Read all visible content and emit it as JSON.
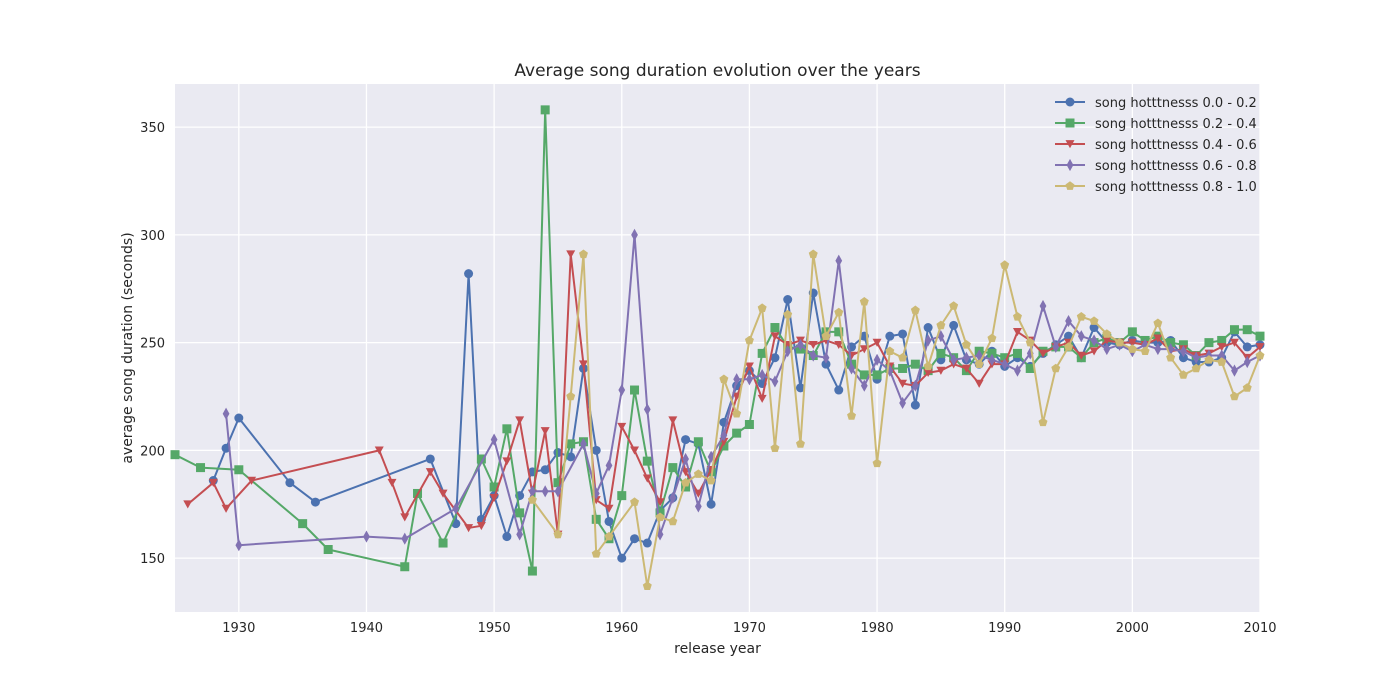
{
  "chart_data": {
    "type": "line",
    "title": "Average song duration evolution over the years",
    "xlabel": "release year",
    "ylabel": "average song duration (seconds)",
    "xlim": [
      1925,
      2010
    ],
    "ylim": [
      125,
      370
    ],
    "xticks": [
      1930,
      1940,
      1950,
      1960,
      1970,
      1980,
      1990,
      2000,
      2010
    ],
    "yticks": [
      150,
      200,
      250,
      300,
      350
    ],
    "grid": true,
    "legend_position": "top-right",
    "series": [
      {
        "name": "song hotttnesss 0.0 - 0.2",
        "color": "#4c72b0",
        "marker": "circle",
        "x": [
          1928,
          1929,
          1930,
          1934,
          1936,
          1945,
          1947,
          1948,
          1949,
          1950,
          1951,
          1952,
          1953,
          1954,
          1955,
          1956,
          1957,
          1958,
          1959,
          1960,
          1961,
          1962,
          1963,
          1964,
          1965,
          1966,
          1967,
          1968,
          1969,
          1970,
          1971,
          1972,
          1973,
          1974,
          1975,
          1976,
          1977,
          1978,
          1979,
          1980,
          1981,
          1982,
          1983,
          1984,
          1985,
          1986,
          1987,
          1988,
          1989,
          1990,
          1991,
          1992,
          1993,
          1994,
          1995,
          1996,
          1997,
          1998,
          1999,
          2000,
          2001,
          2002,
          2003,
          2004,
          2005,
          2006,
          2007,
          2008,
          2009,
          2010
        ],
        "y": [
          186,
          201,
          215,
          185,
          176,
          196,
          166,
          282,
          168,
          179,
          160,
          179,
          190,
          191,
          199,
          197,
          238,
          200,
          167,
          150,
          159,
          157,
          172,
          178,
          205,
          203,
          175,
          213,
          230,
          237,
          231,
          243,
          270,
          229,
          273,
          240,
          228,
          248,
          253,
          233,
          253,
          254,
          221,
          257,
          242,
          258,
          242,
          240,
          246,
          239,
          243,
          239,
          245,
          249,
          253,
          243,
          257,
          250,
          249,
          251,
          250,
          250,
          251,
          243,
          241,
          241,
          243,
          255,
          248,
          249
        ]
      },
      {
        "name": "song hotttnesss 0.2 - 0.4",
        "color": "#55a868",
        "marker": "square",
        "x": [
          1925,
          1927,
          1930,
          1935,
          1937,
          1943,
          1944,
          1946,
          1949,
          1950,
          1951,
          1952,
          1953,
          1954,
          1955,
          1956,
          1957,
          1958,
          1959,
          1960,
          1961,
          1962,
          1963,
          1964,
          1965,
          1966,
          1967,
          1968,
          1969,
          1970,
          1971,
          1972,
          1973,
          1974,
          1975,
          1976,
          1977,
          1978,
          1979,
          1980,
          1981,
          1982,
          1983,
          1984,
          1985,
          1986,
          1987,
          1988,
          1989,
          1990,
          1991,
          1992,
          1993,
          1994,
          1995,
          1996,
          1997,
          1998,
          1999,
          2000,
          2001,
          2002,
          2003,
          2004,
          2005,
          2006,
          2007,
          2008,
          2009,
          2010
        ],
        "y": [
          198,
          192,
          191,
          166,
          154,
          146,
          180,
          157,
          196,
          183,
          210,
          171,
          144,
          358,
          185,
          203,
          204,
          168,
          159,
          179,
          228,
          195,
          171,
          192,
          183,
          204,
          190,
          202,
          208,
          212,
          245,
          257,
          248,
          247,
          244,
          255,
          255,
          240,
          235,
          235,
          238,
          238,
          240,
          237,
          245,
          243,
          237,
          246,
          245,
          243,
          245,
          238,
          246,
          248,
          248,
          243,
          250,
          252,
          250,
          255,
          251,
          253,
          250,
          249,
          244,
          250,
          251,
          256,
          256,
          253
        ]
      },
      {
        "name": "song hotttnesss 0.4 - 0.6",
        "color": "#c44e52",
        "marker": "triangle-down",
        "x": [
          1926,
          1928,
          1929,
          1931,
          1941,
          1942,
          1943,
          1945,
          1946,
          1948,
          1949,
          1950,
          1951,
          1952,
          1953,
          1954,
          1955,
          1956,
          1957,
          1958,
          1959,
          1960,
          1961,
          1962,
          1963,
          1964,
          1965,
          1966,
          1967,
          1968,
          1969,
          1970,
          1971,
          1972,
          1973,
          1974,
          1975,
          1976,
          1977,
          1978,
          1979,
          1980,
          1981,
          1982,
          1983,
          1984,
          1985,
          1986,
          1987,
          1988,
          1989,
          1990,
          1991,
          1992,
          1993,
          1994,
          1995,
          1996,
          1997,
          1998,
          1999,
          2000,
          2001,
          2002,
          2003,
          2004,
          2005,
          2006,
          2007,
          2008,
          2009,
          2010
        ],
        "y": [
          175,
          185,
          173,
          186,
          200,
          185,
          169,
          190,
          180,
          164,
          165,
          178,
          195,
          214,
          180,
          209,
          161,
          291,
          240,
          177,
          173,
          211,
          200,
          187,
          176,
          214,
          190,
          180,
          191,
          204,
          225,
          239,
          224,
          253,
          249,
          251,
          249,
          251,
          249,
          244,
          247,
          250,
          239,
          231,
          230,
          236,
          237,
          240,
          238,
          231,
          240,
          240,
          255,
          251,
          245,
          248,
          250,
          244,
          246,
          251,
          250,
          250,
          249,
          252,
          246,
          247,
          244,
          245,
          248,
          250,
          243,
          248
        ]
      },
      {
        "name": "song hotttnesss 0.6 - 0.8",
        "color": "#8172b2",
        "marker": "diamond",
        "x": [
          1929,
          1930,
          1940,
          1943,
          1947,
          1950,
          1952,
          1953,
          1954,
          1955,
          1957,
          1958,
          1959,
          1960,
          1961,
          1962,
          1963,
          1964,
          1965,
          1966,
          1967,
          1968,
          1969,
          1970,
          1971,
          1972,
          1973,
          1974,
          1975,
          1976,
          1977,
          1978,
          1979,
          1980,
          1981,
          1982,
          1983,
          1984,
          1985,
          1986,
          1987,
          1988,
          1989,
          1990,
          1991,
          1992,
          1993,
          1994,
          1995,
          1996,
          1997,
          1998,
          1999,
          2000,
          2001,
          2002,
          2003,
          2004,
          2005,
          2006,
          2007,
          2008,
          2009,
          2010
        ],
        "y": [
          217,
          156,
          160,
          159,
          173,
          205,
          161,
          181,
          181,
          181,
          203,
          180,
          193,
          228,
          300,
          219,
          161,
          178,
          196,
          174,
          197,
          207,
          233,
          233,
          235,
          232,
          246,
          249,
          244,
          243,
          288,
          238,
          230,
          242,
          237,
          222,
          230,
          251,
          253,
          242,
          243,
          244,
          242,
          240,
          237,
          245,
          267,
          248,
          260,
          253,
          251,
          247,
          249,
          246,
          249,
          247,
          247,
          246,
          243,
          244,
          244,
          237,
          241,
          244
        ]
      },
      {
        "name": "song hotttnesss 0.8 - 1.0",
        "color": "#ccb974",
        "marker": "pentagon",
        "x": [
          1953,
          1955,
          1956,
          1957,
          1958,
          1959,
          1961,
          1962,
          1963,
          1964,
          1965,
          1966,
          1967,
          1968,
          1969,
          1970,
          1971,
          1972,
          1973,
          1974,
          1975,
          1976,
          1977,
          1978,
          1979,
          1980,
          1981,
          1982,
          1983,
          1984,
          1985,
          1986,
          1987,
          1988,
          1989,
          1990,
          1991,
          1992,
          1993,
          1994,
          1995,
          1996,
          1997,
          1998,
          1999,
          2000,
          2001,
          2002,
          2003,
          2004,
          2005,
          2006,
          2007,
          2008,
          2009,
          2010
        ],
        "y": [
          177,
          161,
          225,
          291,
          152,
          160,
          176,
          137,
          169,
          167,
          185,
          189,
          186,
          233,
          217,
          251,
          266,
          201,
          263,
          203,
          291,
          253,
          264,
          216,
          269,
          194,
          246,
          243,
          265,
          239,
          258,
          267,
          249,
          240,
          252,
          286,
          262,
          250,
          213,
          238,
          248,
          262,
          260,
          254,
          250,
          247,
          246,
          259,
          243,
          235,
          238,
          242,
          241,
          225,
          229,
          244
        ]
      }
    ]
  }
}
